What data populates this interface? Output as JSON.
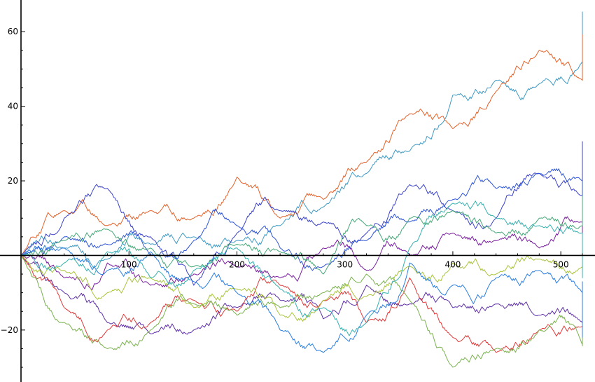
{
  "chart_data": {
    "type": "line",
    "title": "",
    "xlabel": "",
    "ylabel": "",
    "xlim": [
      0,
      520
    ],
    "ylim": [
      -33,
      67
    ],
    "grid": false,
    "legend": "none",
    "x_ticks": [
      100,
      200,
      300,
      400,
      500
    ],
    "y_ticks": [
      -20,
      20,
      40,
      60
    ],
    "x_tick_labels": [
      "100",
      "200",
      "300",
      "400",
      "500"
    ],
    "y_tick_labels": [
      "−20",
      "20",
      "40",
      "60"
    ],
    "x_step": 40,
    "series": [
      {
        "color": "#3f9ac4",
        "values": [
          0,
          2,
          -1,
          3,
          5,
          4,
          8,
          13,
          22,
          28,
          43,
          47,
          46,
          52,
          50,
          57,
          64
        ]
      },
      {
        "color": "#e3622a",
        "values": [
          0,
          12,
          8,
          12,
          10,
          21,
          10,
          15,
          25,
          38,
          34,
          44,
          55,
          47,
          52,
          58
        ]
      },
      {
        "color": "#3b43c8",
        "values": [
          0,
          10,
          18,
          5,
          -8,
          6,
          12,
          9,
          6,
          19,
          12,
          10,
          22,
          16,
          18,
          26,
          30
        ]
      },
      {
        "color": "#2f55d6",
        "values": [
          0,
          5,
          3,
          0,
          4,
          8,
          2,
          -3,
          4,
          9,
          15,
          18,
          22,
          20,
          10,
          8,
          5
        ]
      },
      {
        "color": "#5e2fa8",
        "values": [
          0,
          -10,
          -18,
          -21,
          -20,
          -14,
          -12,
          -17,
          -8,
          -13,
          -14,
          -13,
          -16,
          -18,
          -16,
          -14
        ]
      },
      {
        "color": "#7a1fa0",
        "values": [
          0,
          -6,
          -2,
          -8,
          -5,
          -3,
          -6,
          2,
          -4,
          0,
          6,
          4,
          2,
          9,
          11,
          8,
          5
        ]
      },
      {
        "color": "#e03a3a",
        "values": [
          0,
          -14,
          -20,
          -18,
          -12,
          -15,
          -8,
          -12,
          -18,
          -6,
          -22,
          -26,
          -20,
          -19,
          -21,
          -16
        ]
      },
      {
        "color": "#7ab24e",
        "values": [
          0,
          -18,
          -25,
          -20,
          -13,
          -16,
          -14,
          -10,
          -5,
          -12,
          -30,
          -25,
          -20,
          -24,
          -22,
          -18
        ]
      },
      {
        "color": "#44a878",
        "values": [
          0,
          4,
          7,
          2,
          -3,
          3,
          1,
          -5,
          8,
          10,
          12,
          6,
          10,
          8,
          14,
          12,
          16
        ]
      },
      {
        "color": "#a8c43a",
        "values": [
          0,
          -4,
          -10,
          -6,
          -14,
          -9,
          -16,
          -12,
          -11,
          -3,
          -2,
          -5,
          -1,
          -3,
          -4,
          -2
        ]
      },
      {
        "color": "#2a7ee0",
        "values": [
          0,
          2,
          -4,
          1,
          -7,
          -10,
          -20,
          -26,
          -16,
          -2,
          -8,
          -6,
          -4,
          -10,
          -8,
          -12,
          -22
        ]
      },
      {
        "color": "#36b0b0",
        "values": [
          0,
          -2,
          1,
          -6,
          -4,
          2,
          -9,
          -14,
          -18,
          2,
          14,
          10,
          8,
          6,
          -3,
          -6,
          -4
        ]
      }
    ]
  }
}
